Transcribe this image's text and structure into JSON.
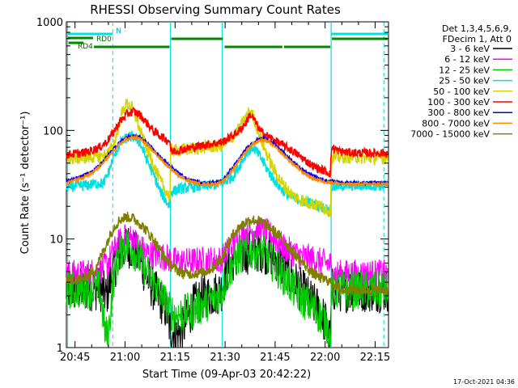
{
  "chart_data": {
    "type": "line",
    "title": "RHESSI Observing Summary Count Rates",
    "xlabel": "Start Time (09-Apr-03 20:42:22)",
    "ylabel": "Count Rate (s⁻¹ detector⁻¹)",
    "footer": "17-Oct-2021 04:36",
    "xscale": "time (minutes after 20:42:22)",
    "xlim": [
      0,
      96.6
    ],
    "xticks": [
      {
        "t": 2.6,
        "label": "20:45"
      },
      {
        "t": 17.6,
        "label": "21:00"
      },
      {
        "t": 32.6,
        "label": "21:15"
      },
      {
        "t": 47.6,
        "label": "21:30"
      },
      {
        "t": 62.6,
        "label": "21:45"
      },
      {
        "t": 77.6,
        "label": "22:00"
      },
      {
        "t": 92.6,
        "label": "22:15"
      }
    ],
    "yscale": "log",
    "ylim": [
      1,
      1000
    ],
    "yticks": [
      {
        "v": 1,
        "label": "1"
      },
      {
        "v": 10,
        "label": "10"
      },
      {
        "v": 100,
        "label": "100"
      },
      {
        "v": 1000,
        "label": "1000"
      }
    ],
    "legend": {
      "placement": "top-right",
      "title_lines": [
        "Det 1,3,4,5,6,9,",
        "FDecim 1, Att 0"
      ]
    },
    "shading": {
      "night_intervals": [
        [
          0.4,
          13.9
        ],
        [
          79.4,
          96.6
        ]
      ],
      "flag_lines": [
        {
          "name": "N",
          "intervals": [
            [
              0.4,
              13.9
            ],
            [
              79.4,
              96.6
            ]
          ],
          "level": 1.2
        },
        {
          "name": "RD0",
          "intervals": [
            [
              0.4,
              8.0
            ]
          ],
          "level": 1.18
        }
      ],
      "dashed_markers": [
        13.9,
        95.2
      ],
      "solid_markers": [
        31.2,
        46.7,
        79.4
      ],
      "decim_bars": {
        "name": "RD4",
        "intervals": [
          [
            0.4,
            5.4
          ],
          [
            8.0,
            31.2
          ],
          [
            31.2,
            47.2
          ],
          [
            47.2,
            65.0
          ],
          [
            65.0,
            79.4
          ],
          [
            79.4,
            96.6
          ]
        ],
        "level": 1.1
      }
    },
    "series": [
      {
        "name": "3 - 6 keV",
        "color": "#000000",
        "x": [
          0,
          5,
          8,
          10,
          12,
          14,
          16,
          18,
          20,
          22,
          24,
          26,
          28,
          30,
          31,
          33,
          35,
          38,
          41,
          44,
          46.5,
          48,
          50,
          52,
          54,
          56,
          58,
          60,
          62,
          64,
          66,
          68,
          70,
          72,
          74,
          76,
          78,
          79.2,
          79.5,
          82,
          86,
          90,
          94,
          96.6
        ],
        "y": [
          3.4,
          3.4,
          3.5,
          3.5,
          3.0,
          5.0,
          7.5,
          9.0,
          8.0,
          6.5,
          4.5,
          3.5,
          2.8,
          2.2,
          1.5,
          1.3,
          1.5,
          2.4,
          2.9,
          3.1,
          3.4,
          5.0,
          6.5,
          7.0,
          7.5,
          7.8,
          8.0,
          7.5,
          7.0,
          6.0,
          5.0,
          4.2,
          3.5,
          3.0,
          2.5,
          2.2,
          1.6,
          1.1,
          3.4,
          3.4,
          3.4,
          3.4,
          3.4,
          3.4
        ]
      },
      {
        "name": "6 - 12 keV",
        "color": "#ff00ff",
        "x": [
          0,
          5,
          8,
          10,
          12,
          14,
          16,
          18,
          20,
          22,
          24,
          26,
          28,
          30,
          31,
          33,
          36,
          40,
          44,
          46.5,
          48,
          50,
          52,
          54,
          56,
          58,
          60,
          62,
          64,
          66,
          68,
          70,
          72,
          74,
          76,
          78,
          79.2,
          79.5,
          82,
          86,
          90,
          94,
          96.6
        ],
        "y": [
          4.8,
          4.8,
          5.0,
          5.0,
          5.8,
          7.5,
          9.5,
          10.5,
          10.0,
          8.5,
          7.5,
          7.2,
          7.0,
          6.8,
          6.5,
          6.2,
          6.2,
          6.3,
          6.4,
          6.5,
          7.5,
          9.0,
          10.5,
          11.5,
          12.0,
          12.3,
          11.5,
          10.5,
          9.0,
          8.0,
          7.5,
          7.0,
          6.8,
          6.5,
          6.2,
          6.0,
          5.8,
          4.8,
          4.8,
          4.8,
          4.8,
          4.8,
          4.8
        ]
      },
      {
        "name": "12 - 25 keV",
        "color": "#00cc00",
        "x": [
          0,
          5,
          8,
          10,
          11.5,
          12.5,
          14,
          16,
          18,
          20,
          22,
          24,
          26,
          28,
          30,
          31,
          33,
          36,
          40,
          44,
          46.5,
          48,
          50,
          52,
          54,
          56,
          58,
          60,
          62,
          64,
          66,
          68,
          70,
          72,
          74,
          76,
          78,
          79.2,
          79.5,
          82,
          86,
          90,
          94,
          96.6
        ],
        "y": [
          3.4,
          3.4,
          3.5,
          3.5,
          1.5,
          1.2,
          4.0,
          7.5,
          9.0,
          8.0,
          6.5,
          5.0,
          4.0,
          3.2,
          2.5,
          2.2,
          2.0,
          2.1,
          2.4,
          2.8,
          3.2,
          4.5,
          6.0,
          7.0,
          7.5,
          7.8,
          7.5,
          7.0,
          6.0,
          5.0,
          4.2,
          3.5,
          3.0,
          2.6,
          2.3,
          2.0,
          1.7,
          1.1,
          3.4,
          3.4,
          3.4,
          3.4,
          3.4,
          3.4
        ]
      },
      {
        "name": "25 - 50 keV",
        "color": "#00e0e0",
        "x": [
          0,
          5,
          8,
          10,
          11,
          12.5,
          14,
          16,
          18,
          20,
          22,
          24,
          26,
          28,
          30,
          31.1,
          31.3,
          34,
          38,
          42,
          46.5,
          48,
          50,
          52,
          54,
          56,
          58,
          60,
          62,
          64,
          66,
          68,
          70,
          72,
          74,
          76,
          78,
          79.2,
          79.5,
          82,
          86,
          90,
          94,
          96.6
        ],
        "y": [
          30,
          31,
          32,
          33,
          32,
          40,
          55,
          75,
          85,
          88,
          78,
          55,
          40,
          28,
          22,
          20,
          27,
          29,
          30,
          31,
          32,
          34,
          38,
          48,
          62,
          70,
          58,
          45,
          36,
          30,
          26,
          24,
          23,
          22,
          21,
          20,
          19,
          18,
          30,
          31,
          31,
          31,
          31,
          32
        ]
      },
      {
        "name": "50 - 100 keV",
        "color": "#d4d400",
        "x": [
          0,
          5,
          8,
          10,
          11,
          12.5,
          14,
          15,
          16,
          17,
          18,
          19.5,
          21,
          22,
          24,
          26,
          28,
          30,
          31.1,
          31.3,
          34,
          38,
          42,
          46.5,
          48,
          50,
          52,
          54,
          55,
          56,
          57,
          58,
          60,
          62,
          64,
          66,
          68,
          70,
          72,
          74,
          76,
          78,
          79.2,
          79.5,
          82,
          86,
          90,
          94,
          96.6
        ],
        "y": [
          55,
          56,
          57,
          58,
          58,
          62,
          70,
          90,
          120,
          155,
          175,
          165,
          130,
          100,
          70,
          50,
          35,
          27,
          24,
          65,
          66,
          68,
          70,
          72,
          78,
          88,
          105,
          135,
          150,
          135,
          110,
          88,
          62,
          45,
          35,
          29,
          25,
          23,
          22,
          21,
          20,
          19,
          18,
          56,
          57,
          57,
          56,
          56,
          56
        ]
      },
      {
        "name": "100 - 300 keV",
        "color": "#ff0000",
        "x": [
          0,
          5,
          8,
          10,
          12,
          14,
          16,
          18,
          20,
          22,
          24,
          26,
          28,
          30,
          31.1,
          31.3,
          34,
          38,
          42,
          46.5,
          48,
          50,
          52,
          54,
          55,
          56,
          57,
          58,
          60,
          62,
          64,
          66,
          68,
          70,
          72,
          74,
          76,
          78,
          79.2,
          79.5,
          82,
          86,
          90,
          94,
          96.6
        ],
        "y": [
          60,
          62,
          66,
          70,
          78,
          95,
          120,
          140,
          150,
          140,
          118,
          100,
          90,
          82,
          80,
          64,
          66,
          70,
          74,
          78,
          82,
          90,
          100,
          120,
          140,
          130,
          115,
          100,
          90,
          82,
          76,
          70,
          64,
          58,
          52,
          47,
          44,
          42,
          40,
          70,
          64,
          62,
          62,
          62,
          62
        ]
      },
      {
        "name": "300 - 800 keV",
        "color": "#0000ee",
        "x": [
          0,
          4,
          8,
          11,
          14,
          16,
          18,
          20,
          22,
          24,
          27,
          30,
          33,
          36,
          40,
          44,
          46.5,
          48,
          50,
          52,
          54,
          56,
          58,
          60,
          62,
          65,
          68,
          71,
          74,
          77,
          80,
          83,
          86,
          89,
          92,
          96.6
        ],
        "y": [
          34,
          37,
          42,
          52,
          67,
          78,
          86,
          89,
          87,
          78,
          62,
          50,
          42,
          36,
          33,
          33,
          34,
          38,
          46,
          56,
          68,
          78,
          84,
          83,
          76,
          63,
          51,
          43,
          38,
          35,
          34,
          33,
          33,
          33,
          33,
          33
        ]
      },
      {
        "name": "800 - 7000 keV",
        "color": "#ff8800",
        "x": [
          0,
          4,
          8,
          11,
          14,
          16,
          18,
          20,
          22,
          24,
          27,
          30,
          33,
          36,
          40,
          44,
          46.5,
          48,
          50,
          52,
          54,
          56,
          58,
          60,
          62,
          65,
          68,
          71,
          74,
          77,
          80,
          83,
          86,
          89,
          92,
          96.6
        ],
        "y": [
          33,
          36,
          41,
          50,
          64,
          75,
          83,
          86,
          84,
          75,
          60,
          48,
          40,
          35,
          32,
          32,
          33,
          37,
          44,
          54,
          65,
          75,
          81,
          80,
          73,
          60,
          49,
          41,
          36,
          34,
          33,
          32,
          32,
          32,
          32,
          32
        ]
      },
      {
        "name": "7000 - 15000 keV",
        "color": "#808000",
        "x": [
          0,
          5,
          8,
          10,
          12,
          14,
          16,
          18,
          20,
          22,
          24,
          26,
          28,
          30,
          32,
          35,
          38,
          41,
          44,
          46.5,
          48,
          50,
          52,
          54,
          56,
          58,
          60,
          62,
          64,
          66,
          68,
          70,
          72,
          74,
          76,
          78,
          79.4,
          82,
          86,
          90,
          94,
          96.6
        ],
        "y": [
          4.2,
          4.3,
          5.0,
          6.5,
          9.0,
          12.5,
          15.0,
          16.0,
          15.5,
          14.0,
          12.0,
          10.0,
          8.0,
          6.5,
          5.5,
          4.8,
          4.8,
          4.9,
          5.5,
          6.5,
          8.5,
          11.0,
          13.0,
          14.5,
          15.0,
          14.5,
          13.5,
          12.0,
          10.5,
          9.0,
          7.5,
          6.5,
          5.5,
          4.8,
          4.4,
          4.2,
          4.0,
          3.4,
          3.4,
          3.4,
          3.4,
          3.4
        ]
      }
    ]
  }
}
